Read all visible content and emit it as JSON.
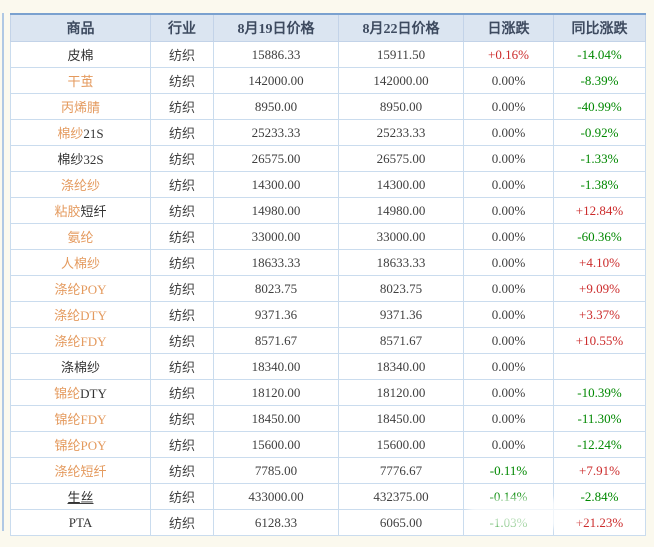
{
  "colors": {
    "up_red": "#cc2b2b",
    "down_green": "#008800",
    "flat": "#3f3f3f",
    "name_orange": "#e49a5e",
    "name_black": "#333333",
    "header_bg": "#dbe5f1",
    "header_text": "#3d4a5f",
    "row_border": "#cadcee",
    "table_top_border": "#7aa1cf",
    "page_bg": "#fbf9ee"
  },
  "table": {
    "headers": [
      "商品",
      "行业",
      "8月19日价格",
      "8月22日价格",
      "日涨跌",
      "同比涨跌"
    ],
    "rows": [
      {
        "name_parts": [
          {
            "text": "皮棉",
            "style": "black"
          }
        ],
        "underline": false,
        "industry": "纺织",
        "price1": "15886.33",
        "price2": "15911.50",
        "daily": "+0.16%",
        "daily_dir": "up",
        "yoy": "-14.04%",
        "yoy_dir": "down"
      },
      {
        "name_parts": [
          {
            "text": "干茧",
            "style": "orange"
          }
        ],
        "underline": false,
        "industry": "纺织",
        "price1": "142000.00",
        "price2": "142000.00",
        "daily": "0.00%",
        "daily_dir": "flat",
        "yoy": "-8.39%",
        "yoy_dir": "down"
      },
      {
        "name_parts": [
          {
            "text": "丙烯腈",
            "style": "orange"
          }
        ],
        "underline": false,
        "industry": "纺织",
        "price1": "8950.00",
        "price2": "8950.00",
        "daily": "0.00%",
        "daily_dir": "flat",
        "yoy": "-40.99%",
        "yoy_dir": "down"
      },
      {
        "name_parts": [
          {
            "text": "棉纱",
            "style": "orange"
          },
          {
            "text": "21S",
            "style": "black"
          }
        ],
        "underline": false,
        "industry": "纺织",
        "price1": "25233.33",
        "price2": "25233.33",
        "daily": "0.00%",
        "daily_dir": "flat",
        "yoy": "-0.92%",
        "yoy_dir": "down"
      },
      {
        "name_parts": [
          {
            "text": "棉纱32S",
            "style": "black"
          }
        ],
        "underline": false,
        "industry": "纺织",
        "price1": "26575.00",
        "price2": "26575.00",
        "daily": "0.00%",
        "daily_dir": "flat",
        "yoy": "-1.33%",
        "yoy_dir": "down"
      },
      {
        "name_parts": [
          {
            "text": "涤纶纱",
            "style": "orange"
          }
        ],
        "underline": false,
        "industry": "纺织",
        "price1": "14300.00",
        "price2": "14300.00",
        "daily": "0.00%",
        "daily_dir": "flat",
        "yoy": "-1.38%",
        "yoy_dir": "down"
      },
      {
        "name_parts": [
          {
            "text": "粘胶",
            "style": "orange"
          },
          {
            "text": "短纤",
            "style": "black"
          }
        ],
        "underline": false,
        "industry": "纺织",
        "price1": "14980.00",
        "price2": "14980.00",
        "daily": "0.00%",
        "daily_dir": "flat",
        "yoy": "+12.84%",
        "yoy_dir": "up"
      },
      {
        "name_parts": [
          {
            "text": "氨纶",
            "style": "orange"
          }
        ],
        "underline": false,
        "industry": "纺织",
        "price1": "33000.00",
        "price2": "33000.00",
        "daily": "0.00%",
        "daily_dir": "flat",
        "yoy": "-60.36%",
        "yoy_dir": "down"
      },
      {
        "name_parts": [
          {
            "text": "人棉纱",
            "style": "orange"
          }
        ],
        "underline": false,
        "industry": "纺织",
        "price1": "18633.33",
        "price2": "18633.33",
        "daily": "0.00%",
        "daily_dir": "flat",
        "yoy": "+4.10%",
        "yoy_dir": "up"
      },
      {
        "name_parts": [
          {
            "text": "涤纶POY",
            "style": "orange"
          }
        ],
        "underline": false,
        "industry": "纺织",
        "price1": "8023.75",
        "price2": "8023.75",
        "daily": "0.00%",
        "daily_dir": "flat",
        "yoy": "+9.09%",
        "yoy_dir": "up"
      },
      {
        "name_parts": [
          {
            "text": "涤纶DTY",
            "style": "orange"
          }
        ],
        "underline": false,
        "industry": "纺织",
        "price1": "9371.36",
        "price2": "9371.36",
        "daily": "0.00%",
        "daily_dir": "flat",
        "yoy": "+3.37%",
        "yoy_dir": "up"
      },
      {
        "name_parts": [
          {
            "text": "涤纶FDY",
            "style": "orange"
          }
        ],
        "underline": false,
        "industry": "纺织",
        "price1": "8571.67",
        "price2": "8571.67",
        "daily": "0.00%",
        "daily_dir": "flat",
        "yoy": "+10.55%",
        "yoy_dir": "up"
      },
      {
        "name_parts": [
          {
            "text": "涤棉纱",
            "style": "black"
          }
        ],
        "underline": false,
        "industry": "纺织",
        "price1": "18340.00",
        "price2": "18340.00",
        "daily": "0.00%",
        "daily_dir": "flat",
        "yoy": "",
        "yoy_dir": "flat"
      },
      {
        "name_parts": [
          {
            "text": "锦纶",
            "style": "orange"
          },
          {
            "text": "DTY",
            "style": "black"
          }
        ],
        "underline": false,
        "industry": "纺织",
        "price1": "18120.00",
        "price2": "18120.00",
        "daily": "0.00%",
        "daily_dir": "flat",
        "yoy": "-10.39%",
        "yoy_dir": "down"
      },
      {
        "name_parts": [
          {
            "text": "锦纶FDY",
            "style": "orange"
          }
        ],
        "underline": false,
        "industry": "纺织",
        "price1": "18450.00",
        "price2": "18450.00",
        "daily": "0.00%",
        "daily_dir": "flat",
        "yoy": "-11.30%",
        "yoy_dir": "down"
      },
      {
        "name_parts": [
          {
            "text": "锦纶POY",
            "style": "orange"
          }
        ],
        "underline": false,
        "industry": "纺织",
        "price1": "15600.00",
        "price2": "15600.00",
        "daily": "0.00%",
        "daily_dir": "flat",
        "yoy": "-12.24%",
        "yoy_dir": "down"
      },
      {
        "name_parts": [
          {
            "text": "涤纶短纤",
            "style": "orange"
          }
        ],
        "underline": false,
        "industry": "纺织",
        "price1": "7785.00",
        "price2": "7776.67",
        "daily": "-0.11%",
        "daily_dir": "down",
        "yoy": "+7.91%",
        "yoy_dir": "up"
      },
      {
        "name_parts": [
          {
            "text": "生丝",
            "style": "black"
          }
        ],
        "underline": true,
        "industry": "纺织",
        "price1": "433000.00",
        "price2": "432375.00",
        "daily": "-0.14%",
        "daily_dir": "down",
        "yoy": "-2.84%",
        "yoy_dir": "down"
      },
      {
        "name_parts": [
          {
            "text": "PTA",
            "style": "black"
          }
        ],
        "underline": false,
        "industry": "纺织",
        "price1": "6128.33",
        "price2": "6065.00",
        "daily": "-1.03%",
        "daily_dir": "down",
        "yoy": "+21.23%",
        "yoy_dir": "up"
      }
    ]
  },
  "chart_data": {
    "type": "table",
    "columns": [
      "商品",
      "行业",
      "8月19日价格",
      "8月22日价格",
      "日涨跌",
      "同比涨跌"
    ],
    "rows": [
      [
        "皮棉",
        "纺织",
        "15886.33",
        "15911.50",
        "+0.16%",
        "-14.04%"
      ],
      [
        "干茧",
        "纺织",
        "142000.00",
        "142000.00",
        "0.00%",
        "-8.39%"
      ],
      [
        "丙烯腈",
        "纺织",
        "8950.00",
        "8950.00",
        "0.00%",
        "-40.99%"
      ],
      [
        "棉纱21S",
        "纺织",
        "25233.33",
        "25233.33",
        "0.00%",
        "-0.92%"
      ],
      [
        "棉纱32S",
        "纺织",
        "26575.00",
        "26575.00",
        "0.00%",
        "-1.33%"
      ],
      [
        "涤纶纱",
        "纺织",
        "14300.00",
        "14300.00",
        "0.00%",
        "-1.38%"
      ],
      [
        "粘胶短纤",
        "纺织",
        "14980.00",
        "14980.00",
        "0.00%",
        "+12.84%"
      ],
      [
        "氨纶",
        "纺织",
        "33000.00",
        "33000.00",
        "0.00%",
        "-60.36%"
      ],
      [
        "人棉纱",
        "纺织",
        "18633.33",
        "18633.33",
        "0.00%",
        "+4.10%"
      ],
      [
        "涤纶POY",
        "纺织",
        "8023.75",
        "8023.75",
        "0.00%",
        "+9.09%"
      ],
      [
        "涤纶DTY",
        "纺织",
        "9371.36",
        "9371.36",
        "0.00%",
        "+3.37%"
      ],
      [
        "涤纶FDY",
        "纺织",
        "8571.67",
        "8571.67",
        "0.00%",
        "+10.55%"
      ],
      [
        "涤棉纱",
        "纺织",
        "18340.00",
        "18340.00",
        "0.00%",
        ""
      ],
      [
        "锦纶DTY",
        "纺织",
        "18120.00",
        "18120.00",
        "0.00%",
        "-10.39%"
      ],
      [
        "锦纶FDY",
        "纺织",
        "18450.00",
        "18450.00",
        "0.00%",
        "-11.30%"
      ],
      [
        "锦纶POY",
        "纺织",
        "15600.00",
        "15600.00",
        "0.00%",
        "-12.24%"
      ],
      [
        "涤纶短纤",
        "纺织",
        "7785.00",
        "7776.67",
        "-0.11%",
        "+7.91%"
      ],
      [
        "生丝",
        "纺织",
        "433000.00",
        "432375.00",
        "-0.14%",
        "-2.84%"
      ],
      [
        "PTA",
        "纺织",
        "6128.33",
        "6065.00",
        "-1.03%",
        "+21.23%"
      ]
    ]
  }
}
